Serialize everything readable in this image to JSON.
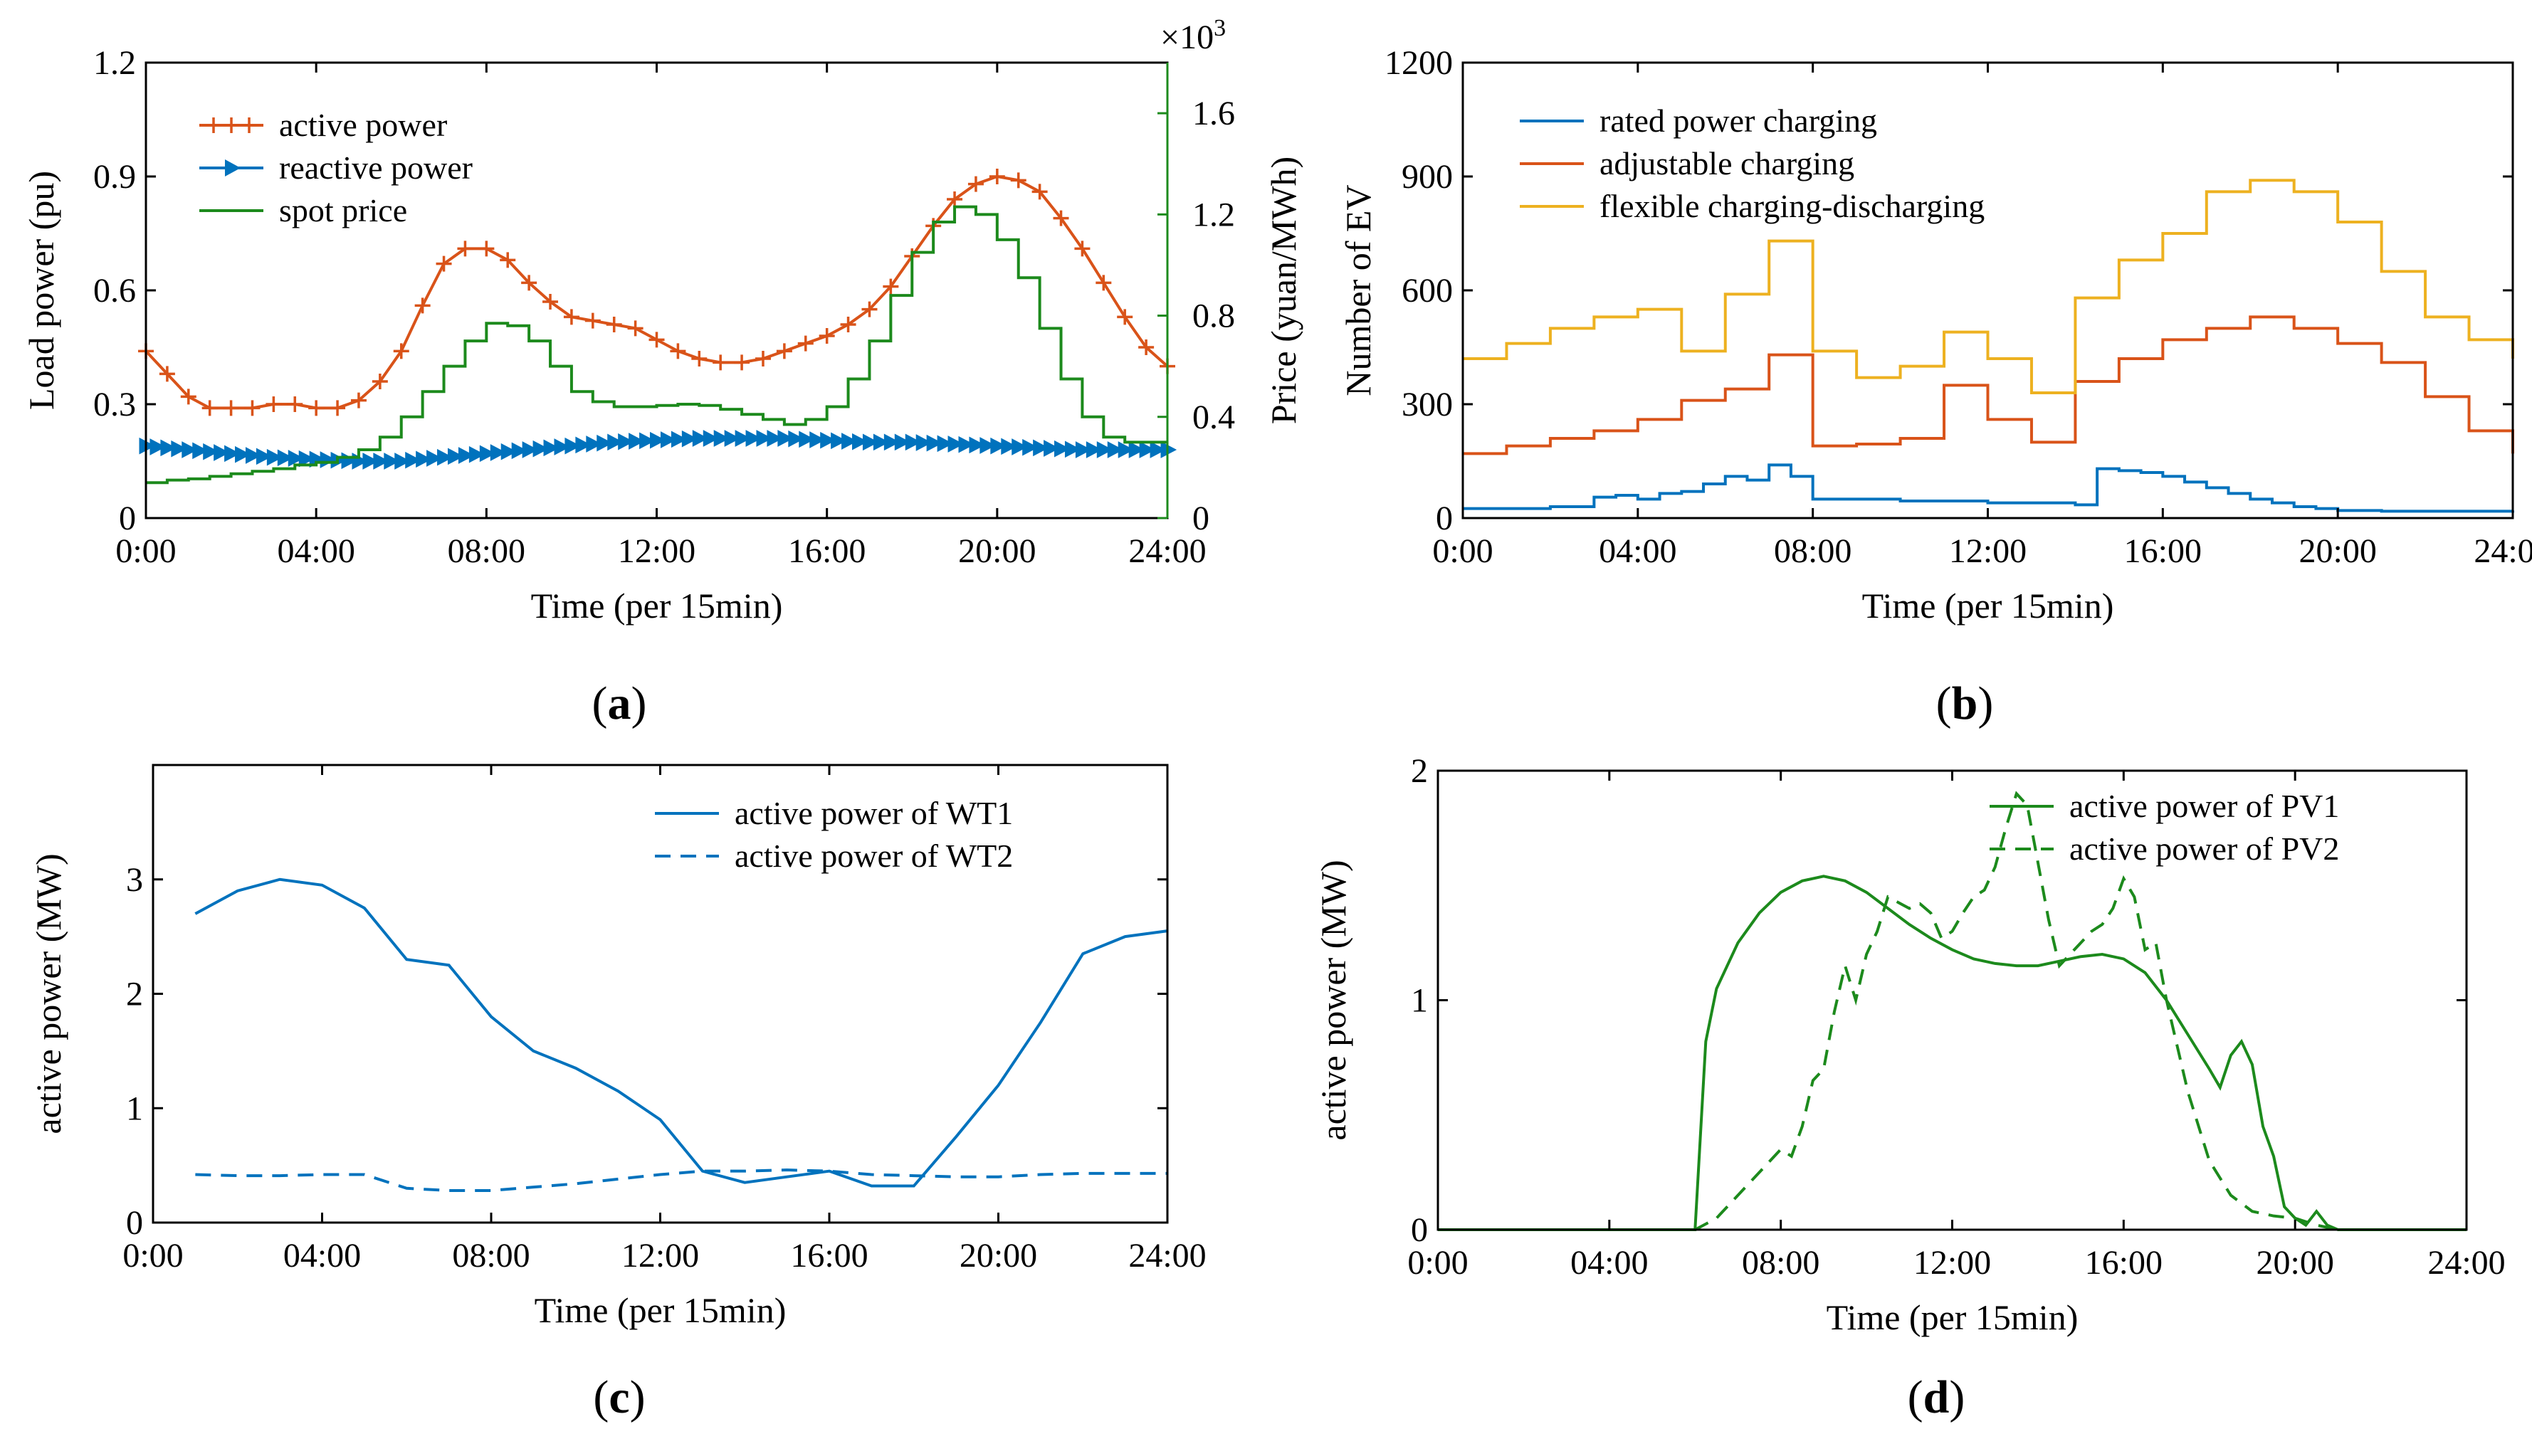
{
  "figure": {
    "captions": {
      "a": "a",
      "b": "b",
      "c": "c",
      "d": "d"
    }
  },
  "colors": {
    "orange": "#d95319",
    "blue": "#0072bd",
    "green": "#1c8a1c",
    "yellow": "#edb120",
    "green_axis": "#1c8a1c"
  },
  "chart_data": [
    {
      "id": "a",
      "type": "line",
      "title": "",
      "xlabel": "Time (per 15min)",
      "ylabel": "Load power (pu)",
      "ylabel_right": "Price (yuan/MWh)",
      "right_exponent": "×10",
      "right_exponent_power": "3",
      "xlim": [
        0,
        24
      ],
      "ylim": [
        0,
        1.2
      ],
      "ylim_right": [
        0,
        1.8
      ],
      "xticks": [
        0,
        4,
        8,
        12,
        16,
        20,
        24
      ],
      "xticklabels": [
        "0:00",
        "04:00",
        "08:00",
        "12:00",
        "16:00",
        "20:00",
        "24:00"
      ],
      "yticks": [
        0,
        0.3,
        0.6,
        0.9,
        1.2
      ],
      "yticklabels": [
        "0",
        "0.3",
        "0.6",
        "0.9",
        "1.2"
      ],
      "yticks_right": [
        0,
        0.4,
        0.8,
        1.2,
        1.6
      ],
      "yticklabels_right": [
        "0",
        "0.4",
        "0.8",
        "1.2",
        "1.6"
      ],
      "legend": {
        "position": "top-left",
        "entries": [
          "active power",
          "reactive power",
          "spot price"
        ]
      },
      "series": [
        {
          "name": "active power",
          "axis": "left",
          "style": "line-plus",
          "color": "orange",
          "x": [
            0,
            0.5,
            1,
            1.5,
            2,
            2.5,
            3,
            3.5,
            4,
            4.5,
            5,
            5.5,
            6,
            6.5,
            7,
            7.5,
            8,
            8.5,
            9,
            9.5,
            10,
            10.5,
            11,
            11.5,
            12,
            12.5,
            13,
            13.5,
            14,
            14.5,
            15,
            15.5,
            16,
            16.5,
            17,
            17.5,
            18,
            18.5,
            19,
            19.5,
            20,
            20.5,
            21,
            21.5,
            22,
            22.5,
            23,
            23.5,
            24
          ],
          "values": [
            0.44,
            0.38,
            0.32,
            0.29,
            0.29,
            0.29,
            0.3,
            0.3,
            0.29,
            0.29,
            0.31,
            0.36,
            0.44,
            0.56,
            0.67,
            0.71,
            0.71,
            0.68,
            0.62,
            0.57,
            0.53,
            0.52,
            0.51,
            0.5,
            0.47,
            0.44,
            0.42,
            0.41,
            0.41,
            0.42,
            0.44,
            0.46,
            0.48,
            0.51,
            0.55,
            0.61,
            0.69,
            0.77,
            0.84,
            0.88,
            0.9,
            0.89,
            0.86,
            0.79,
            0.71,
            0.62,
            0.53,
            0.45,
            0.4
          ]
        },
        {
          "name": "reactive power",
          "axis": "left",
          "style": "line-triangle",
          "color": "blue",
          "x": [
            0,
            1,
            2,
            3,
            4,
            5,
            6,
            7,
            8,
            9,
            10,
            11,
            12,
            13,
            14,
            15,
            16,
            17,
            18,
            19,
            20,
            21,
            22,
            23,
            24
          ],
          "values": [
            0.19,
            0.18,
            0.17,
            0.16,
            0.155,
            0.15,
            0.15,
            0.16,
            0.17,
            0.18,
            0.19,
            0.2,
            0.205,
            0.21,
            0.21,
            0.21,
            0.205,
            0.2,
            0.2,
            0.195,
            0.19,
            0.185,
            0.18,
            0.18,
            0.18
          ]
        },
        {
          "name": "spot price",
          "axis": "right",
          "style": "stairs",
          "color": "green",
          "x": [
            0,
            0.5,
            1,
            1.5,
            2,
            2.5,
            3,
            3.5,
            4,
            4.5,
            5,
            5.5,
            6,
            6.5,
            7,
            7.5,
            8,
            8.5,
            9,
            9.5,
            10,
            10.5,
            11,
            11.5,
            12,
            12.5,
            13,
            13.5,
            14,
            14.5,
            15,
            15.5,
            16,
            16.5,
            17,
            17.5,
            18,
            18.5,
            19,
            19.5,
            20,
            20.5,
            21,
            21.5,
            22,
            22.5,
            23,
            23.5,
            24
          ],
          "values": [
            0.14,
            0.15,
            0.155,
            0.165,
            0.175,
            0.185,
            0.195,
            0.21,
            0.22,
            0.24,
            0.27,
            0.32,
            0.4,
            0.5,
            0.6,
            0.7,
            0.77,
            0.76,
            0.7,
            0.6,
            0.5,
            0.46,
            0.44,
            0.44,
            0.445,
            0.45,
            0.445,
            0.43,
            0.41,
            0.39,
            0.37,
            0.39,
            0.44,
            0.55,
            0.7,
            0.88,
            1.05,
            1.17,
            1.23,
            1.2,
            1.1,
            0.95,
            0.75,
            0.55,
            0.4,
            0.32,
            0.3,
            0.3,
            0.3
          ]
        }
      ]
    },
    {
      "id": "b",
      "type": "line",
      "title": "",
      "xlabel": "Time (per 15min)",
      "ylabel": "Number of EV",
      "xlim": [
        0,
        24
      ],
      "ylim": [
        0,
        1200
      ],
      "xticks": [
        0,
        4,
        8,
        12,
        16,
        20,
        24
      ],
      "xticklabels": [
        "0:00",
        "04:00",
        "08:00",
        "12:00",
        "16:00",
        "20:00",
        "24:00"
      ],
      "yticks": [
        0,
        300,
        600,
        900,
        1200
      ],
      "yticklabels": [
        "0",
        "300",
        "600",
        "900",
        "1200"
      ],
      "legend": {
        "position": "top-left",
        "entries": [
          "rated power charging",
          "adjustable charging",
          "flexible charging-discharging"
        ]
      },
      "series": [
        {
          "name": "rated power charging",
          "style": "stairs",
          "color": "blue",
          "x": [
            0,
            1,
            2,
            3,
            3.5,
            4,
            4.5,
            5,
            5.5,
            6,
            6.5,
            7,
            7.5,
            8,
            10,
            12,
            14,
            14.5,
            15,
            15.5,
            16,
            16.5,
            17,
            17.5,
            18,
            18.5,
            19,
            19.5,
            20,
            21,
            22,
            24
          ],
          "values": [
            25,
            25,
            30,
            55,
            60,
            50,
            65,
            70,
            90,
            110,
            100,
            140,
            110,
            50,
            45,
            40,
            35,
            130,
            125,
            120,
            110,
            95,
            80,
            65,
            50,
            40,
            30,
            25,
            20,
            18,
            18,
            20
          ]
        },
        {
          "name": "adjustable charging",
          "style": "stairs",
          "color": "orange",
          "x": [
            0,
            1,
            2,
            3,
            4,
            5,
            6,
            7,
            8,
            9,
            10,
            11,
            12,
            13,
            14,
            15,
            16,
            17,
            18,
            19,
            20,
            21,
            22,
            23,
            24
          ],
          "values": [
            170,
            190,
            210,
            230,
            260,
            310,
            340,
            430,
            190,
            195,
            210,
            350,
            260,
            200,
            360,
            420,
            470,
            500,
            530,
            500,
            460,
            410,
            320,
            230,
            170
          ]
        },
        {
          "name": "flexible charging-discharging",
          "style": "stairs",
          "color": "yellow",
          "x": [
            0,
            1,
            2,
            3,
            4,
            5,
            6,
            7,
            8,
            9,
            10,
            11,
            12,
            13,
            14,
            15,
            16,
            17,
            18,
            19,
            20,
            21,
            22,
            23,
            24
          ],
          "values": [
            420,
            460,
            500,
            530,
            550,
            440,
            590,
            730,
            440,
            370,
            400,
            490,
            420,
            330,
            580,
            680,
            750,
            860,
            890,
            860,
            780,
            650,
            530,
            470,
            420
          ]
        }
      ]
    },
    {
      "id": "c",
      "type": "line",
      "title": "",
      "xlabel": "Time (per 15min)",
      "ylabel": "active power (MW)",
      "xlim": [
        0,
        24
      ],
      "ylim": [
        0,
        4
      ],
      "xticks": [
        0,
        4,
        8,
        12,
        16,
        20,
        24
      ],
      "xticklabels": [
        "0:00",
        "04:00",
        "08:00",
        "12:00",
        "16:00",
        "20:00",
        "24:00"
      ],
      "yticks": [
        0,
        1,
        2,
        3
      ],
      "yticklabels": [
        "0",
        "1",
        "2",
        "3"
      ],
      "legend": {
        "position": "top-right",
        "entries": [
          "active power of WT1",
          "active power of WT2"
        ]
      },
      "series": [
        {
          "name": "active power of WT1",
          "style": "solid",
          "color": "blue",
          "x": [
            1,
            2,
            3,
            4,
            5,
            6,
            7,
            8,
            9,
            10,
            11,
            12,
            13,
            14,
            15,
            16,
            17,
            18,
            19,
            20,
            21,
            22,
            23,
            24
          ],
          "values": [
            2.7,
            2.9,
            3.0,
            2.95,
            2.75,
            2.3,
            2.25,
            1.8,
            1.5,
            1.35,
            1.15,
            0.9,
            0.45,
            0.35,
            0.4,
            0.45,
            0.32,
            0.32,
            0.75,
            1.2,
            1.75,
            2.35,
            2.5,
            2.55
          ]
        },
        {
          "name": "active power of WT2",
          "style": "dashed",
          "color": "blue",
          "x": [
            1,
            2,
            3,
            4,
            5,
            6,
            7,
            8,
            9,
            10,
            11,
            12,
            13,
            14,
            15,
            16,
            17,
            18,
            19,
            20,
            21,
            22,
            23,
            24
          ],
          "values": [
            0.42,
            0.41,
            0.41,
            0.42,
            0.42,
            0.3,
            0.28,
            0.28,
            0.31,
            0.34,
            0.38,
            0.42,
            0.45,
            0.45,
            0.46,
            0.45,
            0.42,
            0.41,
            0.4,
            0.4,
            0.42,
            0.43,
            0.43,
            0.43
          ]
        }
      ]
    },
    {
      "id": "d",
      "type": "line",
      "title": "",
      "xlabel": "Time (per 15min)",
      "ylabel": "active power (MW)",
      "xlim": [
        0,
        24
      ],
      "ylim": [
        0,
        2
      ],
      "xticks": [
        0,
        4,
        8,
        12,
        16,
        20,
        24
      ],
      "xticklabels": [
        "0:00",
        "04:00",
        "08:00",
        "12:00",
        "16:00",
        "20:00",
        "24:00"
      ],
      "yticks": [
        0,
        1,
        2
      ],
      "yticklabels": [
        "0",
        "1",
        "2"
      ],
      "legend": {
        "position": "top-right",
        "entries": [
          "active power of PV1",
          "active power of PV2"
        ]
      },
      "series": [
        {
          "name": "active power of PV1",
          "style": "solid",
          "color": "green",
          "x": [
            0,
            6,
            6.25,
            6.5,
            7,
            7.5,
            8,
            8.5,
            9,
            9.5,
            10,
            10.5,
            11,
            11.5,
            12,
            12.5,
            13,
            13.5,
            14,
            14.5,
            15,
            15.5,
            16,
            16.5,
            17,
            17.5,
            18,
            18.25,
            18.5,
            18.75,
            19,
            19.25,
            19.5,
            19.75,
            20,
            20.25,
            20.5,
            20.75,
            21,
            22,
            24
          ],
          "values": [
            0,
            0,
            0.82,
            1.05,
            1.25,
            1.38,
            1.47,
            1.52,
            1.54,
            1.52,
            1.47,
            1.4,
            1.33,
            1.27,
            1.22,
            1.18,
            1.16,
            1.15,
            1.15,
            1.17,
            1.19,
            1.2,
            1.18,
            1.12,
            1.0,
            0.85,
            0.7,
            0.62,
            0.76,
            0.82,
            0.72,
            0.45,
            0.32,
            0.1,
            0.05,
            0.02,
            0.08,
            0.02,
            0,
            0,
            0
          ]
        },
        {
          "name": "active power of PV2",
          "style": "dashed",
          "color": "green",
          "x": [
            0,
            6,
            6.5,
            7,
            7.5,
            8,
            8.25,
            8.5,
            8.75,
            9,
            9.25,
            9.5,
            9.75,
            10,
            10.25,
            10.5,
            11,
            11.25,
            11.5,
            11.75,
            12,
            12.25,
            12.5,
            12.75,
            13,
            13.25,
            13.5,
            13.75,
            14,
            14.25,
            14.5,
            14.75,
            15,
            15.25,
            15.5,
            15.75,
            16,
            16.25,
            16.5,
            16.75,
            17,
            17.25,
            17.5,
            17.75,
            18,
            18.5,
            19,
            19.5,
            20,
            20.5,
            21,
            24
          ],
          "values": [
            0,
            0,
            0.05,
            0.15,
            0.25,
            0.35,
            0.32,
            0.45,
            0.65,
            0.7,
            0.95,
            1.15,
            1.0,
            1.2,
            1.3,
            1.45,
            1.4,
            1.42,
            1.38,
            1.27,
            1.3,
            1.38,
            1.45,
            1.48,
            1.58,
            1.75,
            1.9,
            1.85,
            1.6,
            1.35,
            1.15,
            1.2,
            1.25,
            1.3,
            1.33,
            1.4,
            1.53,
            1.45,
            1.22,
            1.25,
            1.0,
            0.8,
            0.6,
            0.45,
            0.3,
            0.15,
            0.08,
            0.06,
            0.05,
            0.02,
            0,
            0
          ]
        }
      ]
    }
  ]
}
